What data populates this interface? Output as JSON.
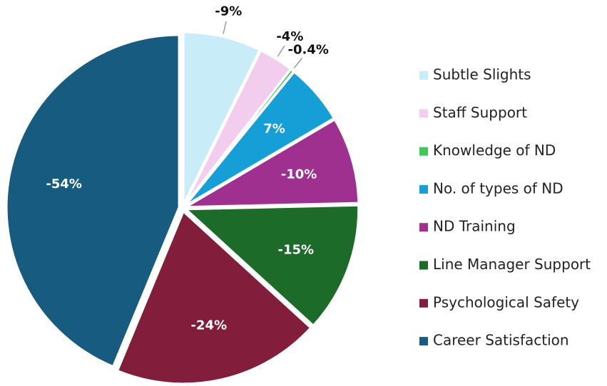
{
  "chart_data": {
    "type": "pie",
    "categories": [
      "Subtle Slights",
      "Staff Support",
      "Knowledge of ND",
      "No. of types of ND",
      "ND Training",
      "Line Manager Support",
      "Psychological Safety",
      "Career Satisfaction"
    ],
    "values": [
      -9,
      -4,
      -0.4,
      7,
      -10,
      -15,
      -24,
      -54
    ],
    "value_labels": [
      "-9%",
      "-4%",
      "-0.4%",
      "7%",
      "-10%",
      "-15%",
      "-24%",
      "-54%"
    ],
    "colors": [
      "#c9ecf9",
      "#f3cdee",
      "#3fc75a",
      "#159fd6",
      "#a0308f",
      "#1d6b28",
      "#821e3c",
      "#175c80"
    ],
    "legend": "right"
  }
}
